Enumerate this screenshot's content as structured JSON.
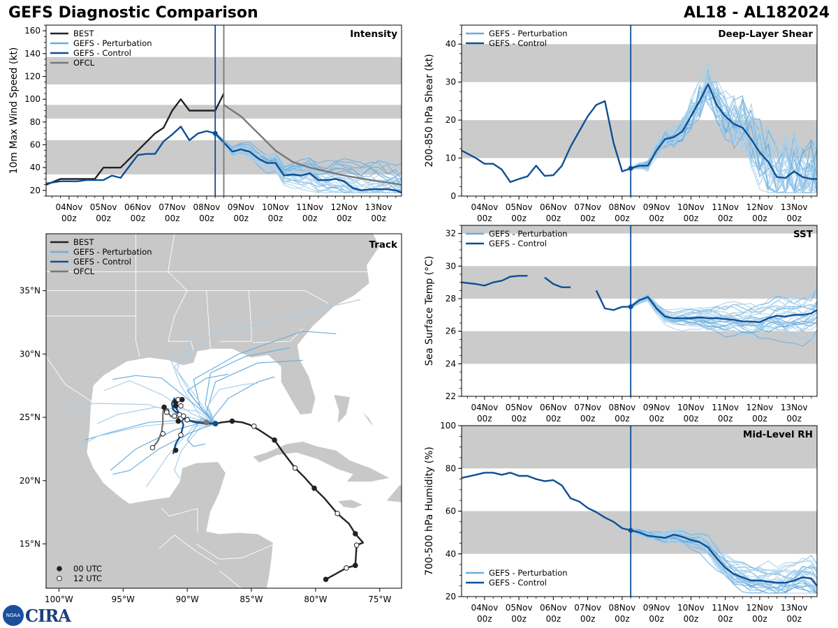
{
  "header": {
    "title": "GEFS Diagnostic Comparison",
    "storm": "AL18 - AL182024"
  },
  "logo": {
    "noaa": "NOAA",
    "cira": "CIRA"
  },
  "colors": {
    "best": "#222222",
    "pert": "#6aaede",
    "pert_light": "#a9cfea",
    "control": "#0d4f96",
    "ofcl": "#777777",
    "band": "#cbcbcb",
    "land": "#c8c8c8"
  },
  "time_axis": {
    "ticks": [
      "04Nov\n00z",
      "05Nov\n00z",
      "06Nov\n00z",
      "07Nov\n00z",
      "08Nov\n00z",
      "09Nov\n00z",
      "10Nov\n00z",
      "11Nov\n00z",
      "12Nov\n00z",
      "13Nov\n00z"
    ],
    "start_hour": -16,
    "end_hour": 232
  },
  "legends": {
    "full": [
      "BEST",
      "GEFS - Perturbation",
      "GEFS - Control",
      "OFCL"
    ],
    "env": [
      "GEFS - Perturbation",
      "GEFS - Control"
    ],
    "track_markers": [
      "00 UTC",
      "12 UTC"
    ]
  },
  "chart_data": [
    {
      "id": "intensity",
      "type": "line",
      "title": "Intensity",
      "ylabel": "10m Max Wind Speed (kt)",
      "ylim": [
        15,
        165
      ],
      "yticks": [
        20,
        40,
        60,
        80,
        100,
        120,
        140,
        160
      ],
      "bands": [
        [
          34,
          64
        ],
        [
          83,
          95
        ],
        [
          113,
          137
        ]
      ],
      "init_hour": 102,
      "ofcl_init_hour": 108,
      "series": [
        {
          "name": "BEST",
          "x": [
            -16,
            -6,
            0,
            12,
            18,
            24,
            30,
            36,
            48,
            60,
            66,
            72,
            78,
            84,
            90,
            96,
            102,
            108
          ],
          "y": [
            25,
            30,
            30,
            30,
            30,
            40,
            40,
            40,
            55,
            70,
            75,
            90,
            100,
            90,
            90,
            90,
            90,
            105
          ]
        },
        {
          "name": "GEFS - Control",
          "x": [
            -16,
            -6,
            0,
            6,
            12,
            18,
            24,
            30,
            36,
            42,
            48,
            54,
            60,
            66,
            72,
            78,
            84,
            90,
            96,
            102,
            108,
            114,
            120,
            126,
            132,
            138,
            144,
            150,
            156,
            162,
            168,
            174,
            180,
            186,
            192,
            198,
            204,
            210,
            216,
            222,
            228,
            232
          ],
          "y": [
            26,
            28,
            28,
            28,
            29,
            29,
            29,
            33,
            31,
            41,
            51,
            52,
            52,
            63,
            69,
            76,
            64,
            70,
            72,
            70,
            62,
            54,
            56,
            54,
            48,
            44,
            44,
            33,
            34,
            33,
            35,
            29,
            29,
            30,
            28,
            22,
            20,
            21,
            21,
            21,
            20,
            18
          ]
        },
        {
          "name": "OFCL",
          "x": [
            108,
            120,
            132,
            144,
            156,
            168,
            192,
            216,
            232
          ],
          "y": [
            95,
            85,
            70,
            55,
            45,
            40,
            33,
            28,
            25
          ]
        }
      ]
    },
    {
      "id": "shear",
      "type": "line",
      "title": "Deep-Layer Shear",
      "ylabel": "200-850 hPa Shear (kt)",
      "ylim": [
        0,
        45
      ],
      "yticks": [
        0,
        10,
        20,
        30,
        40
      ],
      "bands": [
        [
          10,
          20
        ],
        [
          30,
          40
        ]
      ],
      "init_hour": 102,
      "series": [
        {
          "name": "GEFS - Control",
          "x": [
            -16,
            -6,
            0,
            6,
            12,
            18,
            24,
            30,
            36,
            42,
            48,
            54,
            60,
            66,
            72,
            78,
            84,
            90,
            96,
            102,
            108,
            114,
            120,
            126,
            132,
            138,
            144,
            150,
            156,
            162,
            168,
            174,
            180,
            186,
            192,
            198,
            204,
            210,
            216,
            222,
            228,
            232
          ],
          "y": [
            12,
            10,
            8.5,
            8.5,
            7,
            3.7,
            4.5,
            5.2,
            8,
            5.3,
            5.5,
            8,
            13,
            17,
            21,
            24,
            25,
            14,
            6.5,
            7.3,
            8,
            8,
            12,
            15,
            15.5,
            17,
            21,
            25,
            29.5,
            24,
            21,
            19,
            18,
            15,
            11.5,
            9,
            5,
            4.8,
            6.5,
            5,
            4.5,
            4.5
          ]
        }
      ]
    },
    {
      "id": "sst",
      "type": "line",
      "title": "SST",
      "ylabel": "Sea Surface Temp (°C)",
      "ylim": [
        22,
        32.5
      ],
      "yticks": [
        22,
        24,
        26,
        28,
        30,
        32
      ],
      "bands": [
        [
          24,
          26
        ],
        [
          28,
          30
        ],
        [
          32,
          32.5
        ]
      ],
      "init_hour": 102,
      "series": [
        {
          "name": "GEFS - Control",
          "x": [
            -16,
            -6,
            0,
            6,
            12,
            18,
            24,
            30,
            36,
            42,
            48,
            54,
            60,
            66,
            72,
            78,
            84,
            90,
            96,
            102,
            108,
            114,
            120,
            126,
            132,
            138,
            144,
            150,
            156,
            162,
            168,
            174,
            180,
            186,
            192,
            198,
            204,
            210,
            216,
            222,
            228,
            232
          ],
          "y": [
            29,
            28.9,
            28.8,
            29,
            29.1,
            29.35,
            29.4,
            29.4,
            null,
            29.3,
            28.9,
            28.7,
            28.7,
            null,
            null,
            28.5,
            27.4,
            27.3,
            27.5,
            27.5,
            27.9,
            28.1,
            27.4,
            26.9,
            26.8,
            26.8,
            26.8,
            26.85,
            26.8,
            26.8,
            26.75,
            26.7,
            26.6,
            26.6,
            26.55,
            26.8,
            26.95,
            26.9,
            27,
            27,
            27.1,
            27.3
          ]
        }
      ]
    },
    {
      "id": "rh",
      "type": "line",
      "title": "Mid-Level RH",
      "ylabel": "700-500 hPa Humidity (%)",
      "ylim": [
        20,
        100
      ],
      "yticks": [
        20,
        40,
        60,
        80,
        100
      ],
      "bands": [
        [
          40,
          60
        ],
        [
          80,
          100
        ]
      ],
      "init_hour": 102,
      "series": [
        {
          "name": "GEFS - Control",
          "x": [
            -16,
            -6,
            0,
            6,
            12,
            18,
            24,
            30,
            36,
            42,
            48,
            54,
            60,
            66,
            72,
            78,
            84,
            90,
            96,
            102,
            108,
            114,
            120,
            126,
            132,
            138,
            144,
            150,
            156,
            162,
            168,
            174,
            180,
            186,
            192,
            198,
            204,
            210,
            216,
            222,
            228,
            232
          ],
          "y": [
            75.5,
            77,
            78,
            78,
            77,
            78,
            76.5,
            76.5,
            75,
            74,
            74.5,
            72,
            66,
            64.5,
            61.5,
            59.5,
            57,
            55,
            52,
            51,
            50,
            48.5,
            48,
            47.5,
            49,
            48,
            46.5,
            45.5,
            43,
            38,
            33.5,
            30.5,
            29,
            27.5,
            27.5,
            27,
            26.5,
            26.5,
            27.5,
            29,
            28.5,
            25
          ]
        }
      ]
    },
    {
      "id": "track",
      "type": "scatter",
      "title": "Track",
      "xlim": [
        -101,
        -73.3
      ],
      "ylim": [
        11.5,
        39.5
      ],
      "xticks": [
        "100°W",
        "95°W",
        "90°W",
        "85°W",
        "80°W",
        "75°W"
      ],
      "xtick_values": [
        -100,
        -95,
        -90,
        -85,
        -80,
        -75
      ],
      "yticks": [
        "15°N",
        "20°N",
        "25°N",
        "30°N",
        "35°N"
      ],
      "ytick_values": [
        15,
        20,
        25,
        30,
        35
      ],
      "best": [
        [
          -79.2,
          12.2
        ],
        [
          -77.6,
          13.1
        ],
        [
          -76.9,
          13.3
        ],
        [
          -76.8,
          14.9
        ],
        [
          -76.3,
          15.1
        ],
        [
          -76.9,
          15.8
        ],
        [
          -77.4,
          16.6
        ],
        [
          -78.3,
          17.4
        ],
        [
          -79.3,
          18.6
        ],
        [
          -80.1,
          19.4
        ],
        [
          -80.9,
          20.3
        ],
        [
          -81.6,
          21.0
        ],
        [
          -82.5,
          22.2
        ],
        [
          -83.2,
          23.2
        ],
        [
          -84.4,
          24.0
        ],
        [
          -85.1,
          24.4
        ],
        [
          -85.7,
          24.6
        ],
        [
          -86.5,
          24.7
        ],
        [
          -87.3,
          24.6
        ],
        [
          -87.8,
          24.5
        ]
      ],
      "best_markers": [
        {
          "lon": -79.2,
          "lat": 12.2,
          "t": "00"
        },
        {
          "lon": -77.6,
          "lat": 13.1,
          "t": "12"
        },
        {
          "lon": -76.9,
          "lat": 13.3,
          "t": "00"
        },
        {
          "lon": -76.8,
          "lat": 14.9,
          "t": "12"
        },
        {
          "lon": -76.9,
          "lat": 15.8,
          "t": "00"
        },
        {
          "lon": -78.3,
          "lat": 17.4,
          "t": "12"
        },
        {
          "lon": -80.1,
          "lat": 19.4,
          "t": "00"
        },
        {
          "lon": -81.6,
          "lat": 21.0,
          "t": "12"
        },
        {
          "lon": -83.2,
          "lat": 23.2,
          "t": "00"
        },
        {
          "lon": -84.8,
          "lat": 24.3,
          "t": "12"
        },
        {
          "lon": -86.5,
          "lat": 24.7,
          "t": "00"
        }
      ],
      "control": [
        [
          -87.8,
          24.5
        ],
        [
          -88.6,
          24.5
        ],
        [
          -89.4,
          24.6
        ],
        [
          -90.0,
          24.8
        ],
        [
          -90.5,
          25.1
        ],
        [
          -90.8,
          25.6
        ],
        [
          -90.9,
          26.2
        ],
        [
          -91.0,
          26.5
        ],
        [
          -91.2,
          26.1
        ],
        [
          -91.1,
          25.6
        ],
        [
          -90.6,
          25.2
        ],
        [
          -90.3,
          24.4
        ],
        [
          -90.5,
          23.6
        ],
        [
          -90.9,
          22.9
        ],
        [
          -91.1,
          22.1
        ]
      ],
      "control_markers": [
        {
          "lon": -87.8,
          "lat": 24.5,
          "t": "00"
        },
        {
          "lon": -90.0,
          "lat": 24.8,
          "t": "12"
        },
        {
          "lon": -90.9,
          "lat": 26.2,
          "t": "00"
        },
        {
          "lon": -90.6,
          "lat": 25.2,
          "t": "12"
        },
        {
          "lon": -90.5,
          "lat": 23.6,
          "t": "12"
        },
        {
          "lon": -90.9,
          "lat": 22.4,
          "t": "00"
        }
      ],
      "ofcl": [
        [
          -87.8,
          24.5
        ],
        [
          -88.5,
          24.6
        ],
        [
          -89.6,
          24.7
        ],
        [
          -90.6,
          24.9
        ],
        [
          -91.3,
          25.1
        ],
        [
          -91.6,
          25.6
        ],
        [
          -91.8,
          25.8
        ],
        [
          -91.9,
          25.3
        ],
        [
          -91.9,
          24.6
        ],
        [
          -92.0,
          23.8
        ],
        [
          -92.3,
          23.1
        ],
        [
          -92.7,
          22.6
        ]
      ],
      "ofcl_markers": [
        {
          "lon": -88.5,
          "lat": 24.6,
          "t": "00"
        },
        {
          "lon": -90.5,
          "lat": 24.9,
          "t": "12"
        },
        {
          "lon": -91.6,
          "lat": 25.5,
          "t": "12"
        },
        {
          "lon": -91.8,
          "lat": 25.8,
          "t": "00"
        },
        {
          "lon": -91.9,
          "lat": 23.7,
          "t": "12"
        },
        {
          "lon": -92.7,
          "lat": 22.6,
          "t": "12"
        }
      ],
      "extra_markers": [
        {
          "lon": -90.7,
          "lat": 26.4,
          "t": "12"
        },
        {
          "lon": -90.9,
          "lat": 25.9,
          "t": "00"
        },
        {
          "lon": -90.4,
          "lat": 26.4,
          "t": "00"
        },
        {
          "lon": -90.5,
          "lat": 25.9,
          "t": "12"
        },
        {
          "lon": -91.0,
          "lat": 25.1,
          "t": "12"
        },
        {
          "lon": -90.3,
          "lat": 25.1,
          "t": "12"
        },
        {
          "lon": -91.6,
          "lat": 25.4,
          "t": "12"
        },
        {
          "lon": -90.7,
          "lat": 24.7,
          "t": "00"
        }
      ]
    }
  ]
}
